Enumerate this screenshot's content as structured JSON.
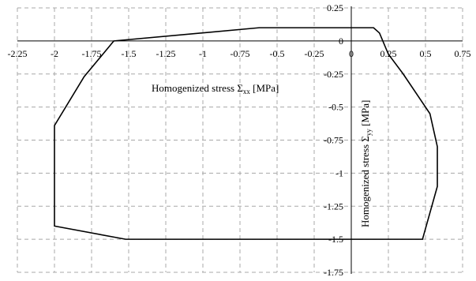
{
  "chart_data": {
    "type": "line",
    "title": "",
    "xlabel": {
      "prefix": "Homogenized stress ",
      "symbol": "Σ",
      "subscript": "xx",
      "unit": " [MPa]"
    },
    "ylabel": {
      "prefix": "Homogenized stress ",
      "symbol": "Σ",
      "subscript": "yy",
      "unit": " [MPa]"
    },
    "xlim": [
      -2.25,
      0.75
    ],
    "ylim": [
      -1.75,
      0.25
    ],
    "xticks": [
      -2.25,
      -2,
      -1.75,
      -1.5,
      -1.25,
      -1,
      -0.75,
      -0.5,
      -0.25,
      0,
      0.25,
      0.5,
      0.75
    ],
    "xtick_labels": [
      "-2.25",
      "-2",
      "-1.75",
      "-1.5",
      "-1.25",
      "-1",
      "-0.75",
      "-0.5",
      "-0.25",
      "0",
      "0.25",
      "0.5",
      "0.75"
    ],
    "yticks": [
      0.25,
      0,
      -0.25,
      -0.5,
      -0.75,
      -1,
      -1.25,
      -1.5,
      -1.75
    ],
    "ytick_labels": [
      "0.25",
      "0",
      "-0.25",
      "-0.5",
      "-0.75",
      "-1",
      "-1.25",
      "-1.5",
      "-1.75"
    ],
    "grid": true,
    "series": [
      {
        "closed": true,
        "color": "#000000",
        "points": [
          {
            "x": -1.6,
            "y": 0.0
          },
          {
            "x": -0.62,
            "y": 0.1
          },
          {
            "x": 0.15,
            "y": 0.1
          },
          {
            "x": 0.19,
            "y": 0.06
          },
          {
            "x": 0.25,
            "y": -0.1
          },
          {
            "x": 0.35,
            "y": -0.25
          },
          {
            "x": 0.53,
            "y": -0.55
          },
          {
            "x": 0.58,
            "y": -0.8
          },
          {
            "x": 0.58,
            "y": -1.1
          },
          {
            "x": 0.48,
            "y": -1.5
          },
          {
            "x": -1.52,
            "y": -1.5
          },
          {
            "x": -2.0,
            "y": -1.4
          },
          {
            "x": -2.0,
            "y": -0.64
          },
          {
            "x": -1.8,
            "y": -0.27
          }
        ]
      }
    ]
  }
}
